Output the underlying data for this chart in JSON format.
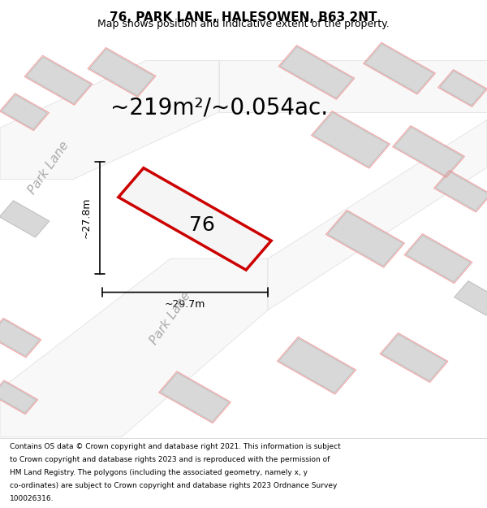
{
  "title": "76, PARK LANE, HALESOWEN, B63 2NT",
  "subtitle": "Map shows position and indicative extent of the property.",
  "area_text": "~219m²/~0.054ac.",
  "number_label": "76",
  "dim_width": "~29.7m",
  "dim_height": "~27.8m",
  "street_label_upper": "Park Lane",
  "street_label_lower": "Park Lane",
  "footer_lines": [
    "Contains OS data © Crown copyright and database right 2021. This information is subject",
    "to Crown copyright and database rights 2023 and is reproduced with the permission of",
    "HM Land Registry. The polygons (including the associated geometry, namely x, y",
    "co-ordinates) are subject to Crown copyright and database rights 2023 Ordnance Survey",
    "100026316."
  ],
  "bg_color": "#f2f2f2",
  "building_color": "#d8d8d8",
  "building_edge": "#c0c0c0",
  "plot_fill": "#f5f5f5",
  "plot_edge": "#cc0000",
  "dim_line_color": "#000000",
  "street_text_color": "#aaaaaa",
  "title_fontsize": 11,
  "subtitle_fontsize": 9,
  "area_fontsize": 20,
  "number_fontsize": 18,
  "dim_fontsize": 9,
  "street_fontsize": 11,
  "footer_fontsize": 6.5
}
